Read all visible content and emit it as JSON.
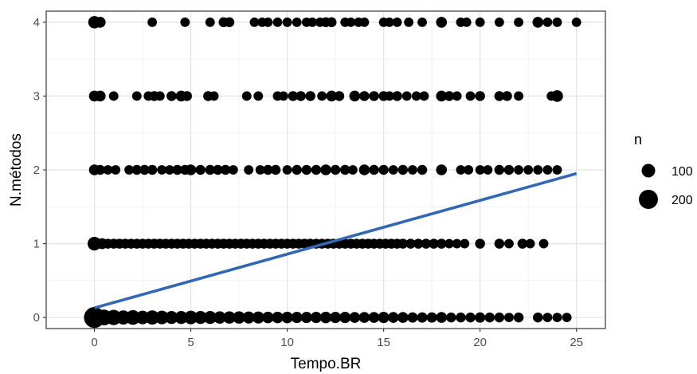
{
  "chart_data": {
    "type": "scatter",
    "title": "",
    "xlabel": "Tempo.BR",
    "ylabel": "N.métodos",
    "xlim": [
      -2.5,
      26.5
    ],
    "ylim": [
      -0.15,
      4.15
    ],
    "x_ticks": [
      0,
      5,
      10,
      15,
      20,
      25
    ],
    "y_ticks": [
      0,
      1,
      2,
      3,
      4
    ],
    "x_tick_labels": [
      "0",
      "5",
      "10",
      "15",
      "20",
      "25"
    ],
    "y_tick_labels": [
      "0",
      "1",
      "2",
      "3",
      "4"
    ],
    "grid": true,
    "legend": {
      "title": "n",
      "position": "right",
      "entries": [
        {
          "label": "100",
          "n": 100
        },
        {
          "label": "200",
          "n": 200
        }
      ]
    },
    "point_color": "#000000",
    "trend_line": {
      "type": "linear",
      "color": "#3366b3",
      "points": [
        [
          0,
          0.13
        ],
        [
          25,
          1.95
        ]
      ]
    },
    "series": [
      {
        "y": 4,
        "points": [
          [
            0,
            60
          ],
          [
            0.3,
            40
          ],
          [
            3,
            25
          ],
          [
            4.7,
            25
          ],
          [
            6,
            25
          ],
          [
            6.7,
            30
          ],
          [
            7,
            30
          ],
          [
            8.3,
            25
          ],
          [
            8.7,
            25
          ],
          [
            9,
            25
          ],
          [
            9.5,
            25
          ],
          [
            10,
            25
          ],
          [
            10.5,
            25
          ],
          [
            11,
            25
          ],
          [
            11.3,
            25
          ],
          [
            11.7,
            25
          ],
          [
            12,
            30
          ],
          [
            12.3,
            30
          ],
          [
            13,
            25
          ],
          [
            13.3,
            25
          ],
          [
            13.7,
            25
          ],
          [
            14,
            25
          ],
          [
            15,
            25
          ],
          [
            15.3,
            25
          ],
          [
            15.7,
            25
          ],
          [
            16.3,
            25
          ],
          [
            17,
            25
          ],
          [
            18,
            40
          ],
          [
            19,
            25
          ],
          [
            19.3,
            25
          ],
          [
            20,
            25
          ],
          [
            21,
            25
          ],
          [
            22,
            25
          ],
          [
            23,
            40
          ],
          [
            23.5,
            25
          ],
          [
            24,
            25
          ],
          [
            25,
            25
          ]
        ]
      },
      {
        "y": 3,
        "points": [
          [
            0,
            40
          ],
          [
            0.3,
            40
          ],
          [
            1,
            25
          ],
          [
            2.2,
            25
          ],
          [
            2.8,
            25
          ],
          [
            3.1,
            30
          ],
          [
            3.4,
            25
          ],
          [
            4,
            30
          ],
          [
            4.5,
            40
          ],
          [
            4.8,
            30
          ],
          [
            5.9,
            30
          ],
          [
            6.2,
            25
          ],
          [
            7.9,
            25
          ],
          [
            8.5,
            25
          ],
          [
            9.5,
            25
          ],
          [
            9.8,
            25
          ],
          [
            10.3,
            30
          ],
          [
            10.7,
            30
          ],
          [
            11.2,
            30
          ],
          [
            11.8,
            25
          ],
          [
            12.3,
            40
          ],
          [
            12.7,
            30
          ],
          [
            13.5,
            40
          ],
          [
            14,
            30
          ],
          [
            14.5,
            30
          ],
          [
            15,
            30
          ],
          [
            15.3,
            25
          ],
          [
            15.7,
            30
          ],
          [
            16.2,
            25
          ],
          [
            16.7,
            25
          ],
          [
            17.1,
            25
          ],
          [
            18,
            40
          ],
          [
            18.4,
            30
          ],
          [
            18.8,
            25
          ],
          [
            19.5,
            25
          ],
          [
            20,
            30
          ],
          [
            21,
            30
          ],
          [
            21.4,
            30
          ],
          [
            22,
            25
          ],
          [
            23.7,
            25
          ],
          [
            24,
            50
          ]
        ]
      },
      {
        "y": 2,
        "points": [
          [
            0,
            40
          ],
          [
            0.3,
            30
          ],
          [
            0.7,
            25
          ],
          [
            1.1,
            25
          ],
          [
            1.8,
            25
          ],
          [
            2.2,
            30
          ],
          [
            2.6,
            30
          ],
          [
            3,
            30
          ],
          [
            3.5,
            25
          ],
          [
            3.9,
            25
          ],
          [
            4.3,
            30
          ],
          [
            4.7,
            30
          ],
          [
            5,
            40
          ],
          [
            5.5,
            30
          ],
          [
            6,
            30
          ],
          [
            6.4,
            30
          ],
          [
            6.8,
            30
          ],
          [
            7.2,
            25
          ],
          [
            8,
            25
          ],
          [
            8.6,
            25
          ],
          [
            9,
            30
          ],
          [
            9.4,
            30
          ],
          [
            10,
            25
          ],
          [
            10.5,
            30
          ],
          [
            11,
            30
          ],
          [
            11.5,
            30
          ],
          [
            12,
            40
          ],
          [
            12.5,
            30
          ],
          [
            13,
            30
          ],
          [
            13.4,
            25
          ],
          [
            14,
            40
          ],
          [
            14.5,
            30
          ],
          [
            15,
            30
          ],
          [
            15.5,
            25
          ],
          [
            16,
            30
          ],
          [
            16.5,
            25
          ],
          [
            17,
            30
          ],
          [
            18,
            40
          ],
          [
            19,
            25
          ],
          [
            19.4,
            25
          ],
          [
            20,
            25
          ],
          [
            20.4,
            25
          ],
          [
            21,
            30
          ],
          [
            21.5,
            30
          ],
          [
            22,
            25
          ],
          [
            22.5,
            25
          ],
          [
            23,
            25
          ],
          [
            23.5,
            25
          ],
          [
            24,
            25
          ]
        ]
      },
      {
        "y": 1,
        "points": [
          [
            0,
            80
          ],
          [
            0.4,
            40
          ],
          [
            0.7,
            30
          ],
          [
            1,
            30
          ],
          [
            1.3,
            30
          ],
          [
            1.6,
            30
          ],
          [
            1.9,
            30
          ],
          [
            2.2,
            30
          ],
          [
            2.5,
            30
          ],
          [
            2.8,
            30
          ],
          [
            3.1,
            30
          ],
          [
            3.4,
            30
          ],
          [
            3.7,
            30
          ],
          [
            4,
            30
          ],
          [
            4.3,
            30
          ],
          [
            4.6,
            30
          ],
          [
            4.9,
            30
          ],
          [
            5.2,
            30
          ],
          [
            5.5,
            30
          ],
          [
            5.8,
            30
          ],
          [
            6.1,
            30
          ],
          [
            6.4,
            30
          ],
          [
            6.7,
            30
          ],
          [
            7,
            30
          ],
          [
            7.3,
            30
          ],
          [
            7.6,
            30
          ],
          [
            7.9,
            30
          ],
          [
            8.2,
            30
          ],
          [
            8.5,
            30
          ],
          [
            8.8,
            30
          ],
          [
            9.1,
            30
          ],
          [
            9.4,
            30
          ],
          [
            9.7,
            30
          ],
          [
            10,
            30
          ],
          [
            10.3,
            30
          ],
          [
            10.6,
            30
          ],
          [
            10.9,
            30
          ],
          [
            11.2,
            30
          ],
          [
            11.5,
            30
          ],
          [
            11.8,
            30
          ],
          [
            12.1,
            30
          ],
          [
            12.4,
            30
          ],
          [
            12.7,
            30
          ],
          [
            13,
            30
          ],
          [
            13.3,
            30
          ],
          [
            13.6,
            30
          ],
          [
            13.9,
            30
          ],
          [
            14.2,
            30
          ],
          [
            14.5,
            30
          ],
          [
            14.8,
            30
          ],
          [
            15.1,
            30
          ],
          [
            15.4,
            30
          ],
          [
            15.7,
            30
          ],
          [
            16,
            30
          ],
          [
            16.4,
            30
          ],
          [
            16.8,
            30
          ],
          [
            17.2,
            30
          ],
          [
            17.6,
            30
          ],
          [
            18,
            30
          ],
          [
            18.4,
            25
          ],
          [
            18.8,
            25
          ],
          [
            19.2,
            25
          ],
          [
            20,
            30
          ],
          [
            21,
            30
          ],
          [
            21.5,
            25
          ],
          [
            22.2,
            30
          ],
          [
            22.6,
            25
          ],
          [
            23.3,
            25
          ]
        ]
      },
      {
        "y": 0,
        "points": [
          [
            0,
            250
          ],
          [
            0.5,
            120
          ],
          [
            1,
            110
          ],
          [
            1.5,
            90
          ],
          [
            2,
            100
          ],
          [
            2.5,
            80
          ],
          [
            3,
            90
          ],
          [
            3.5,
            80
          ],
          [
            4,
            70
          ],
          [
            4.5,
            70
          ],
          [
            5,
            80
          ],
          [
            5.5,
            70
          ],
          [
            6,
            70
          ],
          [
            6.5,
            60
          ],
          [
            7,
            60
          ],
          [
            7.5,
            60
          ],
          [
            8,
            55
          ],
          [
            8.5,
            55
          ],
          [
            9,
            50
          ],
          [
            9.5,
            50
          ],
          [
            10,
            50
          ],
          [
            10.5,
            45
          ],
          [
            11,
            45
          ],
          [
            11.5,
            45
          ],
          [
            12,
            50
          ],
          [
            12.5,
            45
          ],
          [
            13,
            45
          ],
          [
            13.5,
            40
          ],
          [
            14,
            40
          ],
          [
            14.5,
            40
          ],
          [
            15,
            45
          ],
          [
            15.5,
            40
          ],
          [
            16,
            40
          ],
          [
            16.5,
            35
          ],
          [
            17,
            35
          ],
          [
            17.5,
            35
          ],
          [
            18,
            40
          ],
          [
            18.5,
            30
          ],
          [
            19,
            30
          ],
          [
            19.5,
            30
          ],
          [
            20,
            35
          ],
          [
            20.5,
            30
          ],
          [
            21,
            30
          ],
          [
            21.5,
            25
          ],
          [
            22,
            30
          ],
          [
            23,
            30
          ],
          [
            23.5,
            25
          ],
          [
            24,
            25
          ],
          [
            24.5,
            25
          ]
        ]
      }
    ]
  }
}
